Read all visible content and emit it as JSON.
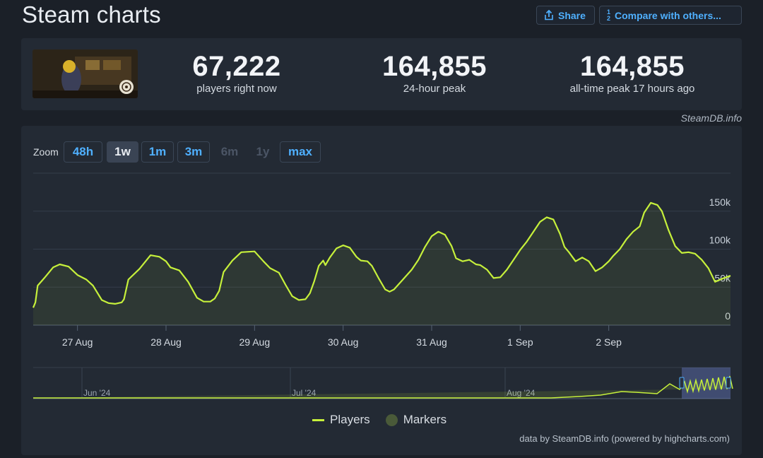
{
  "header": {
    "title": "Steam charts",
    "share_label": "Share",
    "compare_label": "Compare with others..."
  },
  "stats": [
    {
      "value": "67,222",
      "label": "players right now"
    },
    {
      "value": "164,855",
      "label": "24-hour peak"
    },
    {
      "value": "164,855",
      "label": "all-time peak 17 hours ago"
    }
  ],
  "attribution_top": "SteamDB.info",
  "zoom": {
    "label": "Zoom",
    "buttons": [
      {
        "label": "48h",
        "state": "normal"
      },
      {
        "label": "1w",
        "state": "active"
      },
      {
        "label": "1m",
        "state": "normal"
      },
      {
        "label": "3m",
        "state": "normal"
      },
      {
        "label": "6m",
        "state": "disabled"
      },
      {
        "label": "1y",
        "state": "disabled"
      },
      {
        "label": "max",
        "state": "normal"
      }
    ]
  },
  "legend": {
    "players": "Players",
    "markers": "Markers"
  },
  "attribution_bottom": "data by SteamDB.info (powered by highcharts.com)",
  "colors": {
    "series": "#c6f03b",
    "background": "#1b2028",
    "panel": "#232a34",
    "accent": "#4fb0ff"
  },
  "chart_data": {
    "type": "line",
    "series": [
      {
        "name": "Players",
        "points": [
          [
            0.0,
            23000
          ],
          [
            0.05,
            30000
          ],
          [
            0.1,
            52000
          ],
          [
            0.25,
            62000
          ],
          [
            0.45,
            76000
          ],
          [
            0.6,
            80000
          ],
          [
            0.8,
            77000
          ],
          [
            1.0,
            66000
          ],
          [
            1.2,
            60000
          ],
          [
            1.35,
            52000
          ],
          [
            1.55,
            33000
          ],
          [
            1.7,
            29000
          ],
          [
            1.85,
            28000
          ],
          [
            2.0,
            30000
          ],
          [
            2.05,
            34000
          ],
          [
            2.15,
            60000
          ],
          [
            2.4,
            74000
          ],
          [
            2.65,
            92000
          ],
          [
            2.85,
            90000
          ],
          [
            3.0,
            84000
          ],
          [
            3.1,
            76000
          ],
          [
            3.3,
            72000
          ],
          [
            3.5,
            57000
          ],
          [
            3.7,
            36000
          ],
          [
            3.85,
            31000
          ],
          [
            4.0,
            31000
          ],
          [
            4.1,
            35000
          ],
          [
            4.2,
            45000
          ],
          [
            4.3,
            70000
          ],
          [
            4.5,
            85000
          ],
          [
            4.7,
            96000
          ],
          [
            5.0,
            97000
          ],
          [
            5.2,
            84000
          ],
          [
            5.35,
            75000
          ],
          [
            5.55,
            69000
          ],
          [
            5.7,
            53000
          ],
          [
            5.85,
            38000
          ],
          [
            6.0,
            33000
          ],
          [
            6.15,
            34000
          ],
          [
            6.25,
            42000
          ],
          [
            6.35,
            58000
          ],
          [
            6.45,
            78000
          ],
          [
            6.55,
            85000
          ],
          [
            6.6,
            79000
          ],
          [
            6.7,
            89000
          ],
          [
            6.85,
            101000
          ],
          [
            7.0,
            105000
          ],
          [
            7.15,
            102000
          ],
          [
            7.3,
            90000
          ],
          [
            7.4,
            85000
          ],
          [
            7.55,
            84000
          ],
          [
            7.65,
            78000
          ],
          [
            7.8,
            62000
          ],
          [
            7.95,
            47000
          ],
          [
            8.05,
            44000
          ],
          [
            8.15,
            47000
          ],
          [
            8.35,
            60000
          ],
          [
            8.55,
            73000
          ],
          [
            8.7,
            86000
          ],
          [
            8.85,
            103000
          ],
          [
            9.0,
            117000
          ],
          [
            9.15,
            123000
          ],
          [
            9.3,
            119000
          ],
          [
            9.45,
            104000
          ],
          [
            9.55,
            88000
          ],
          [
            9.7,
            84000
          ],
          [
            9.85,
            86000
          ],
          [
            10.0,
            80000
          ],
          [
            10.1,
            79000
          ],
          [
            10.25,
            73000
          ],
          [
            10.4,
            62000
          ],
          [
            10.55,
            63000
          ],
          [
            10.7,
            73000
          ],
          [
            10.85,
            86000
          ],
          [
            11.0,
            99000
          ],
          [
            11.15,
            110000
          ],
          [
            11.3,
            123000
          ],
          [
            11.45,
            136000
          ],
          [
            11.6,
            142000
          ],
          [
            11.75,
            139000
          ],
          [
            11.9,
            120000
          ],
          [
            12.0,
            103000
          ],
          [
            12.1,
            96000
          ],
          [
            12.25,
            84000
          ],
          [
            12.4,
            89000
          ],
          [
            12.55,
            84000
          ],
          [
            12.7,
            71000
          ],
          [
            12.85,
            76000
          ],
          [
            13.0,
            84000
          ],
          [
            13.1,
            91000
          ],
          [
            13.25,
            100000
          ],
          [
            13.4,
            113000
          ],
          [
            13.55,
            123000
          ],
          [
            13.7,
            130000
          ],
          [
            13.8,
            148000
          ],
          [
            13.95,
            161000
          ],
          [
            14.1,
            158000
          ],
          [
            14.2,
            150000
          ],
          [
            14.35,
            125000
          ],
          [
            14.5,
            104000
          ],
          [
            14.65,
            95000
          ],
          [
            14.8,
            96000
          ],
          [
            14.95,
            94000
          ],
          [
            15.1,
            86000
          ],
          [
            15.25,
            75000
          ],
          [
            15.4,
            57000
          ],
          [
            15.6,
            62000
          ],
          [
            15.75,
            65000
          ]
        ]
      }
    ],
    "x_ticks": [
      {
        "x": 1.0,
        "label": "27 Aug"
      },
      {
        "x": 3.0,
        "label": "28 Aug"
      },
      {
        "x": 5.0,
        "label": "29 Aug"
      },
      {
        "x": 7.0,
        "label": "30 Aug"
      },
      {
        "x": 9.0,
        "label": "31 Aug"
      },
      {
        "x": 11.0,
        "label": "1 Sep"
      },
      {
        "x": 13.0,
        "label": "2 Sep"
      }
    ],
    "y_ticks": [
      {
        "y": 0,
        "label": "0"
      },
      {
        "y": 50000,
        "label": "50k"
      },
      {
        "y": 100000,
        "label": "100k"
      },
      {
        "y": 150000,
        "label": "150k"
      }
    ],
    "xlim": [
      0.0,
      15.75
    ],
    "ylim": [
      0,
      200000
    ],
    "grid": true,
    "navigator": {
      "labels": [
        "Jun '24",
        "Jul '24",
        "Aug '24"
      ]
    }
  }
}
